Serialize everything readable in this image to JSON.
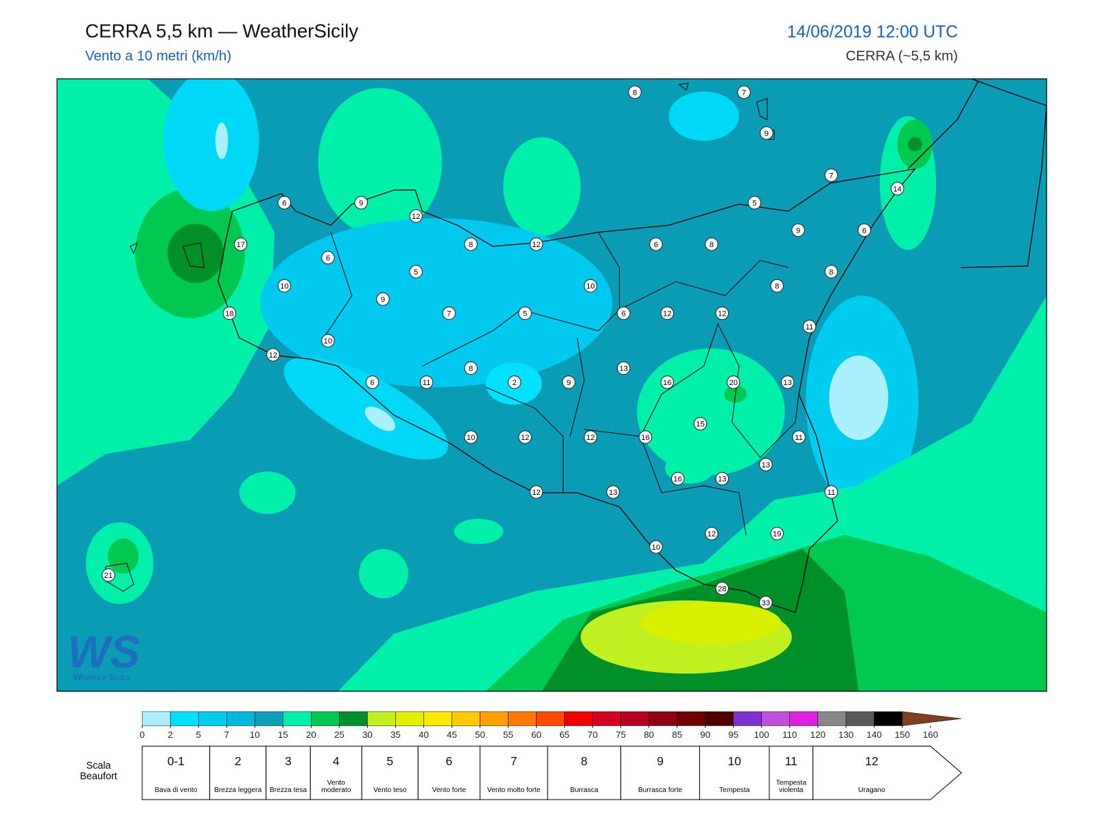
{
  "header": {
    "title": "CERRA 5,5 km — WeatherSicily",
    "subtitle": "Vento a 10 metri (km/h)",
    "datetime": "14/06/2019 12:00 UTC",
    "model": "CERRA (~5,5 km)"
  },
  "stations": [
    8,
    7,
    9,
    7,
    14,
    6,
    9,
    12,
    5,
    9,
    6,
    17,
    8,
    12,
    6,
    8,
    6,
    5,
    8,
    10,
    10,
    8,
    18,
    9,
    7,
    5,
    6,
    12,
    12,
    11,
    10,
    12,
    8,
    13,
    6,
    11,
    2,
    9,
    16,
    20,
    13,
    15,
    10,
    12,
    12,
    16,
    11,
    13,
    16,
    13,
    12,
    13,
    11,
    12,
    19,
    10,
    21,
    28,
    33
  ],
  "colorbar": {
    "ticks": [
      0,
      2,
      5,
      7,
      10,
      15,
      20,
      25,
      30,
      35,
      40,
      45,
      50,
      55,
      60,
      65,
      70,
      75,
      80,
      85,
      90,
      95,
      100,
      110,
      120,
      130,
      140,
      150,
      160
    ],
    "colors": [
      "#aaf0ff",
      "#00e0ff",
      "#00ccf0",
      "#00b8dc",
      "#0aa0b8",
      "#00f0aa",
      "#00c850",
      "#00902a",
      "#c0f020",
      "#e0f000",
      "#ffe800",
      "#ffc800",
      "#ffa000",
      "#ff7800",
      "#ff4800",
      "#f00000",
      "#d80020",
      "#b80020",
      "#900010",
      "#700000",
      "#500000",
      "#8030d0",
      "#c050d8",
      "#e020e0",
      "#888888",
      "#585858",
      "#000000",
      "#804020",
      "#c08040"
    ]
  },
  "beaufort": {
    "label": "Scala Beaufort",
    "classes": [
      {
        "force": "0-1",
        "name": "Bava di vento"
      },
      {
        "force": 2,
        "name": "Brezza leggera"
      },
      {
        "force": 3,
        "name": "Brezza tesa"
      },
      {
        "force": 4,
        "name": "Vento moderato"
      },
      {
        "force": 5,
        "name": "Vento teso"
      },
      {
        "force": 6,
        "name": "Vento forte"
      },
      {
        "force": 7,
        "name": "Vento molto forte"
      },
      {
        "force": 8,
        "name": "Burrasca"
      },
      {
        "force": 9,
        "name": "Burrasca forte"
      },
      {
        "force": 10,
        "name": "Tempesta"
      },
      {
        "force": 11,
        "name": "Tempesta violenta"
      },
      {
        "force": 12,
        "name": "Uragano"
      }
    ]
  },
  "logo": {
    "mark": "WS",
    "name": "Weather Sicily"
  }
}
